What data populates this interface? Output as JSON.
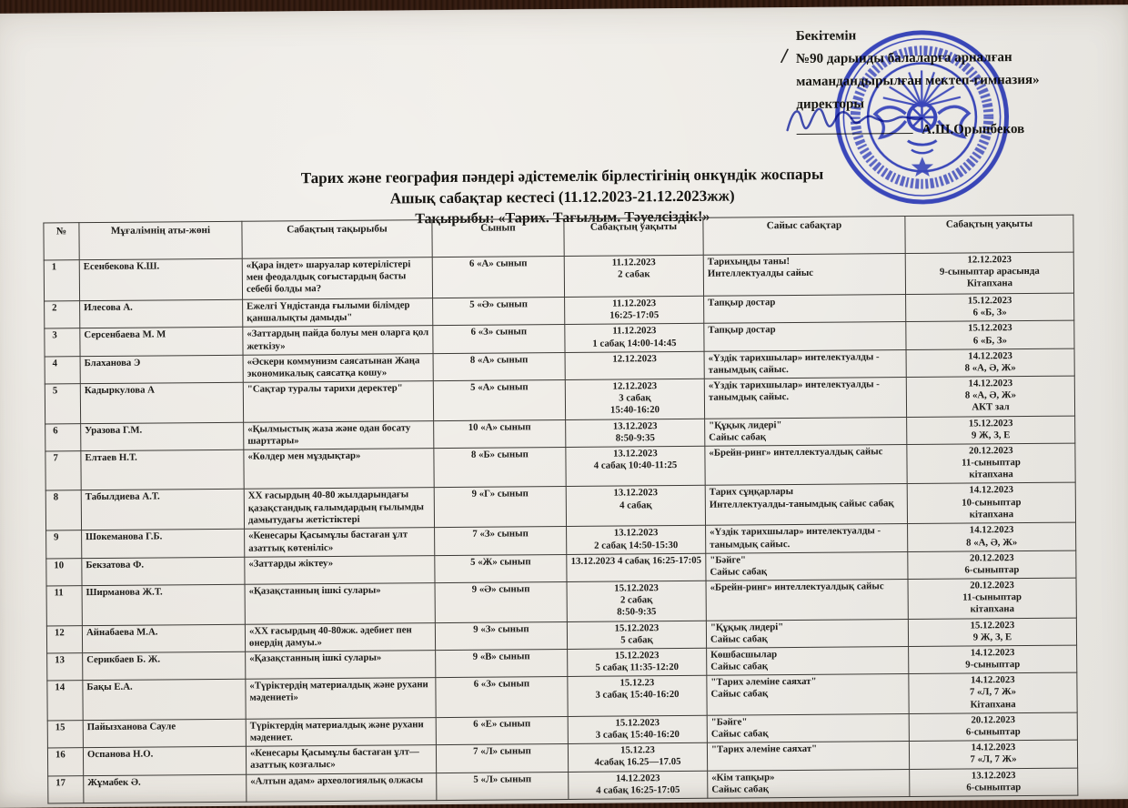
{
  "colors": {
    "stamp_blue": "#2334c8",
    "paper": "#eae7e1",
    "background": "#2e1a10",
    "ink": "#1c1b18"
  },
  "approval": {
    "line1": "Бекітемін",
    "slash_mark": "/",
    "line2": "№90 дарынды балаларға арналған",
    "line3": "мамандандырылған мектеп-гимназия»",
    "line4": "директоры",
    "signer": "А.Ш.Орынбеков"
  },
  "title": {
    "line1": "Тарих және география пәндері әдістемелік бірлестігінің онкүндік жоспары",
    "line2": "Ашық сабақтар кестесі (11.12.2023-21.12.2023жж)",
    "line3": "Тақырыбы: «Тарих. Тағылым. Тәуелсіздік!»"
  },
  "stamp": {
    "name": "blue-round-school-stamp"
  },
  "table": {
    "headers": [
      "№",
      "Мұғалімнің аты-жөні",
      "Сабақтың тақырыбы",
      "Сынып",
      "Сабақтың уақыты",
      "Сайыс сабақтар",
      "Сабақтың уақыты"
    ],
    "rows": [
      [
        "1",
        "Есенбекова К.Ш.",
        "«Қара індет» шаруалар көтерілістері мен феодалдық соғыстардың  басты себебі болды ма?",
        "6 «А» сынып",
        "11.12.2023\n2 сабак",
        "Тарихыңды таны!\nИнтеллектуалды сайыс",
        "12.12.2023\n9-сыныптар арасында\nКітапхана"
      ],
      [
        "2",
        "Илесова А.",
        "Ежелгі Үндістанда ғылыми білімдер қаншалықты дамыды\"",
        "5 «Ә» сынып",
        "11.12.2023\n16:25-17:05",
        "Тапқыр достар",
        "15.12.2023\n6 «Б, З»"
      ],
      [
        "3",
        "Серсенбаева М. М",
        "«Заттардың пайда болуы мен оларга қол жеткізу»",
        "6 «З» сынып",
        "11.12.2023\n1 сабақ 14:00-14:45",
        "Тапқыр достар",
        "15.12.2023\n6 «Б, З»"
      ],
      [
        "4",
        "Блаханова Э",
        "«Әскери коммунизм саясатынан Жаңа экономикалық саясатқа кошу»",
        "8 «А» сынып",
        "12.12.2023",
        "«Үздік тарихшылар» интелектуалды - танымдық сайыс.",
        "14.12.2023\n8 «А, Ә, Ж»"
      ],
      [
        "5",
        "Кадыркулова А",
        "\"Сақтар туралы тарихи деректер\"",
        "5 «А» сынып",
        "12.12.2023\n3 сабақ\n15:40-16:20",
        "«Үздік тарихшылар» интелектуалды - танымдық сайыс.",
        "14.12.2023\n8 «А, Ә, Ж»\nАКТ зал"
      ],
      [
        "6",
        "Уразова Г.М.",
        "«Қылмыстық жаза және одан босату шарттары»",
        "10 «А» сынып",
        "13.12.2023\n8:50-9:35",
        "\"Құқық лидері\"\nСайыс сабақ",
        "15.12.2023\n9 Ж, З, Е"
      ],
      [
        "7",
        "Елтаев Н.Т.",
        "«Көлдер мен мұздықтар»",
        "8 «Б» сынып",
        "13.12.2023\n4 сабақ 10:40-11:25",
        "«Брейн-ринг» интеллектуалдық сайыс",
        "20.12.2023\n11-сыныптар\nкітапхана"
      ],
      [
        "8",
        "Табылдиева А.Т.",
        "ХХ ғасырдың 40-80 жылдарындағы қазақстандық ғалымдардың ғылымды дамытудағы жетістіктері",
        "9 «Г» сынып",
        "13.12.2023\n4 сабақ",
        "Тарих сұңқарлары\nИнтеллектуалды-танымдық сайыс сабақ",
        "14.12.2023\n10-сыныптар\nкітапхана"
      ],
      [
        "9",
        "Шокеманова Г.Б.",
        "«Кенесары Қасымұлы бастаған ұлт азаттық көтеніліс»",
        "7 «З» сынып",
        "13.12.2023\n2 сабақ 14:50-15:30",
        "«Үздік тарихшылар» интелектуалды - танымдық сайыс.",
        "14.12.2023\n8 «А, Ә, Ж»"
      ],
      [
        "10",
        "Бекзатова Ф.",
        "«Заттарды жіктеу»",
        "5 «Ж» сынып",
        "13.12.2023 4 сабақ 16:25-17:05",
        "\"Бәйге\"\nСайыс сабақ",
        "20.12.2023\n6-сыныптар"
      ],
      [
        "11",
        "Ширманова Ж.Т.",
        "«Қазақстанның ішкі сулары»",
        "9 «Ә» сынып",
        "15.12.2023\n2 сабақ\n8:50-9:35",
        "«Брейн-ринг» интеллектуалдық сайыс",
        "20.12.2023\n11-сыныптар\nкітапхана"
      ],
      [
        "12",
        "Айнабаева М.А.",
        "«ХХ ғасырдың 40-80жж. әдебиет пен өнердің дамуы.»",
        "9 «З» сынып",
        "15.12.2023\n5 сабақ",
        "\"Құқық лидері\"\nСайыс сабақ",
        "15.12.2023\n9 Ж, З, Е"
      ],
      [
        "13",
        "Серикбаев Б. Ж.",
        "«Қазақстанның ішкі сулары»",
        "9 «В» сынып",
        "15.12.2023\n5 сабақ 11:35-12:20",
        "Көшбасшылар\nСайыс сабақ",
        "14.12.2023\n9-сыныптар"
      ],
      [
        "14",
        "Бақы Е.А.",
        "«Түріктердің материалдық және рухани мәдениеті»",
        "6 «З» сынып",
        "15.12.23\n3 сабақ 15:40-16:20",
        "\"Тарих әлеміне саяхат\"\nСайыс сабақ",
        "14.12.2023\n7 «Л, 7 Ж»\nКітапхана"
      ],
      [
        "15",
        "Пайызханова Сауле",
        "Түріктердің материалдық және рухани мәдениет.",
        "6 «Е» сынып",
        "15.12.2023\n3 сабақ 15:40-16:20",
        "\"Бәйге\"\nСайыс сабақ",
        "20.12.2023\n6-сыныптар"
      ],
      [
        "16",
        "Оспанова Н.О.",
        "«Кенесары Қасымұлы бастаған ұлт—азаттық козғалыс»",
        "7 «Л» сынып",
        "15.12.23\n4сабақ 16.25—17.05",
        "\"Тарих әлеміне саяхат\"",
        "14.12.2023\n7 «Л, 7 Ж»"
      ],
      [
        "17",
        "Жұмабек Ә.",
        "«Алтын адам» археологиялық олжасы",
        "5 «Л» сынып",
        "14.12.2023\n4 сабақ 16:25-17:05",
        "«Кім тапқыр»\nСайыс сабақ",
        "13.12.2023\n6-сыныптар"
      ]
    ]
  }
}
